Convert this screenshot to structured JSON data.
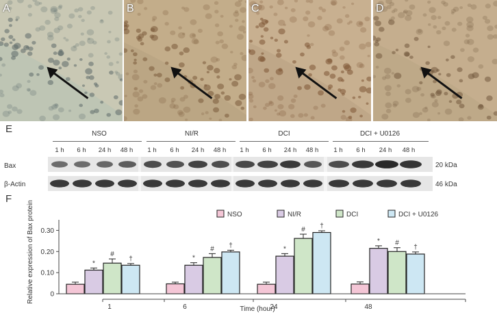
{
  "panels": [
    {
      "label": "A",
      "tone": "#c9c8b4",
      "dark": "#5c6a6a",
      "bg2": "#b9c3b4"
    },
    {
      "label": "B",
      "tone": "#c3ad8a",
      "dark": "#7a5a3a",
      "bg2": "#b8a382"
    },
    {
      "label": "C",
      "tone": "#c8b090",
      "dark": "#7d5534",
      "bg2": "#bba484"
    },
    {
      "label": "D",
      "tone": "#c5ae8e",
      "dark": "#735a3e",
      "bg2": "#baa686"
    }
  ],
  "blot": {
    "section_label": "E",
    "groups": [
      "NSO",
      "NI/R",
      "DCI",
      "DCI + U0126"
    ],
    "times": [
      "1 h",
      "6 h",
      "24 h",
      "48 h"
    ],
    "rows": [
      {
        "label": "Bax",
        "kda": "20 kDa"
      },
      {
        "label": "β-Actin",
        "kda": "46 kDa"
      }
    ]
  },
  "chart_section_label": "F",
  "chart_data": {
    "type": "bar",
    "categories": [
      "1",
      "6",
      "24",
      "48"
    ],
    "xlabel": "Time (hour)",
    "ylabel": "Relative expression of Bax protein",
    "ylim": [
      0,
      0.35
    ],
    "yticks": [
      "0",
      "0.10",
      "0.20",
      "0.30"
    ],
    "ytick_values": [
      0,
      0.1,
      0.2,
      0.3
    ],
    "legend_position": "top-right",
    "series": [
      {
        "name": "NSO",
        "color": "#f4c6d6",
        "values": [
          0.045,
          0.047,
          0.045,
          0.046
        ],
        "errors": [
          0.01,
          0.008,
          0.01,
          0.01
        ],
        "markers": [
          "",
          "",
          "",
          ""
        ]
      },
      {
        "name": "NI/R",
        "color": "#d9cbe4",
        "values": [
          0.112,
          0.135,
          0.178,
          0.215
        ],
        "errors": [
          0.01,
          0.012,
          0.012,
          0.012
        ],
        "markers": [
          "*",
          "*",
          "*",
          "*"
        ]
      },
      {
        "name": "DCI",
        "color": "#cfe6c8",
        "values": [
          0.145,
          0.172,
          0.262,
          0.2
        ],
        "errors": [
          0.02,
          0.018,
          0.02,
          0.018
        ],
        "markers": [
          "#",
          "#",
          "#",
          "#"
        ]
      },
      {
        "name": "DCI + U0126",
        "color": "#cde7f3",
        "values": [
          0.135,
          0.198,
          0.29,
          0.188
        ],
        "errors": [
          0.008,
          0.008,
          0.008,
          0.01
        ],
        "markers": [
          "†",
          "†",
          "†",
          "†"
        ]
      }
    ]
  }
}
